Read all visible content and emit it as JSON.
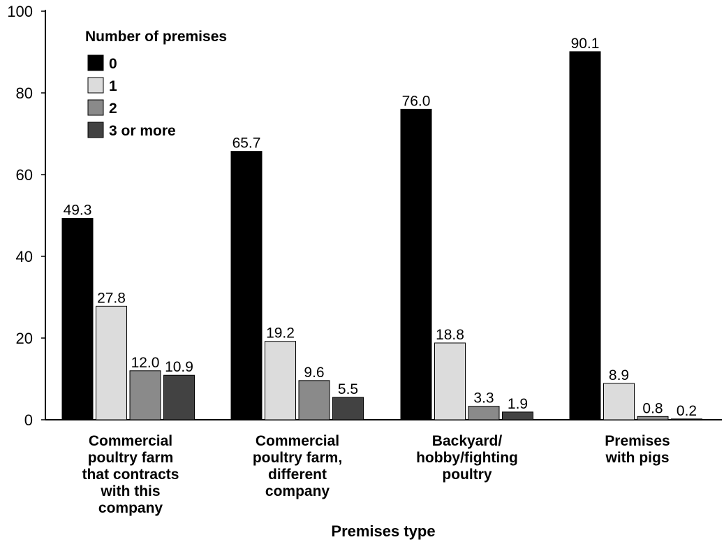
{
  "chart_data": {
    "type": "bar",
    "title": "",
    "xlabel": "Premises type",
    "ylabel": "",
    "ylim": [
      0,
      100
    ],
    "yticks": [
      0,
      20,
      40,
      60,
      80,
      100
    ],
    "grid": false,
    "legend": {
      "title": "Number of premises",
      "placement": "top-left"
    },
    "categories": [
      [
        "Commercial",
        "poultry farm",
        "that contracts",
        "with this",
        "company"
      ],
      [
        "Commercial",
        "poultry farm,",
        "different",
        "company"
      ],
      [
        "Backyard/",
        "hobby/fighting",
        "poultry"
      ],
      [
        "Premises",
        "with pigs"
      ]
    ],
    "series": [
      {
        "name": "0",
        "color": "#000000",
        "values": [
          49.3,
          65.7,
          76.0,
          90.1
        ],
        "labels": [
          "49.3",
          "65.7",
          "76.0",
          "90.1"
        ]
      },
      {
        "name": "1",
        "color": "#dcdcdc",
        "values": [
          27.8,
          19.2,
          18.8,
          8.9
        ],
        "labels": [
          "27.8",
          "19.2",
          "18.8",
          "8.9"
        ]
      },
      {
        "name": "2",
        "color": "#8a8a8a",
        "values": [
          12.0,
          9.6,
          3.3,
          0.8
        ],
        "labels": [
          "12.0",
          "9.6",
          "3.3",
          "0.8"
        ]
      },
      {
        "name": "3 or more",
        "color": "#424242",
        "values": [
          10.9,
          5.5,
          1.9,
          0.2
        ],
        "labels": [
          "10.9",
          "5.5",
          "1.9",
          "0.2"
        ]
      }
    ]
  }
}
